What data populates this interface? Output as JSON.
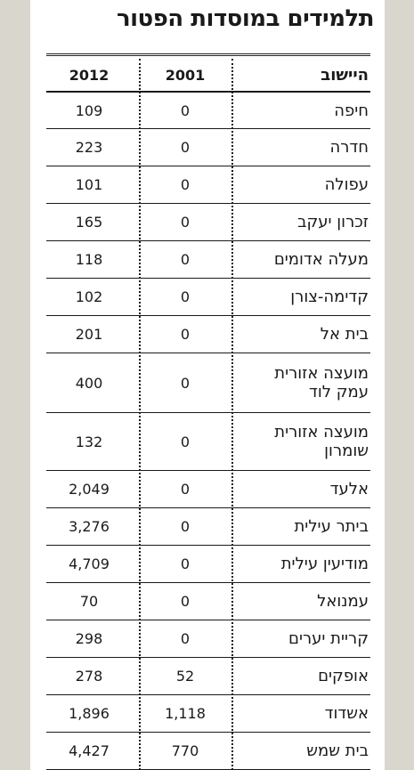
{
  "title": "תלמידים במוסדות הפטור",
  "columns": {
    "year_2012": "2012",
    "year_2001": "2001",
    "settlement": "היישוב"
  },
  "rows": [
    {
      "name": "חיפה",
      "y2001": "0",
      "y2012": "109"
    },
    {
      "name": "חדרה",
      "y2001": "0",
      "y2012": "223"
    },
    {
      "name": "עפולה",
      "y2001": "0",
      "y2012": "101"
    },
    {
      "name": "זכרון יעקב",
      "y2001": "0",
      "y2012": "165"
    },
    {
      "name": "מעלה אדומים",
      "y2001": "0",
      "y2012": "118"
    },
    {
      "name": "קדימה-צורן",
      "y2001": "0",
      "y2012": "102"
    },
    {
      "name": "בית אל",
      "y2001": "0",
      "y2012": "201"
    },
    {
      "name": "מועצה אזורית עמק לוד",
      "y2001": "0",
      "y2012": "400"
    },
    {
      "name": "מועצה אזורית שומרון",
      "y2001": "0",
      "y2012": "132"
    },
    {
      "name": "אלעד",
      "y2001": "0",
      "y2012": "2,049"
    },
    {
      "name": "ביתר עילית",
      "y2001": "0",
      "y2012": "3,276"
    },
    {
      "name": "מודיעין עילית",
      "y2001": "0",
      "y2012": "4,709"
    },
    {
      "name": "עמנואל",
      "y2001": "0",
      "y2012": "70"
    },
    {
      "name": "קריית יערים",
      "y2001": "0",
      "y2012": "298"
    },
    {
      "name": "אופקים",
      "y2001": "52",
      "y2012": "278"
    },
    {
      "name": "אשדוד",
      "y2001": "1,118",
      "y2012": "1,896"
    },
    {
      "name": "בית שמש",
      "y2001": "770",
      "y2012": "4,427"
    }
  ]
}
